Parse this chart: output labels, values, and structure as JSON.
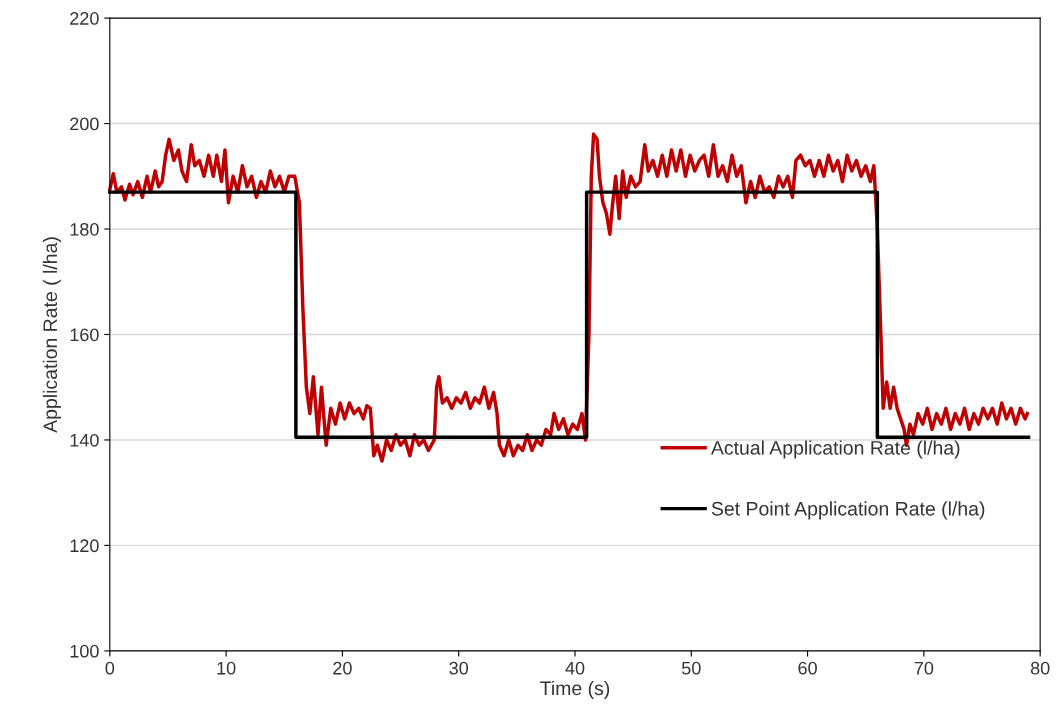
{
  "chart_data": {
    "type": "line",
    "xlabel": "Time (s)",
    "ylabel": "Application Rate ( l/ha)",
    "xlim": [
      0,
      80
    ],
    "xticks": [
      0,
      10,
      20,
      30,
      40,
      50,
      60,
      70,
      80
    ],
    "ylim": [
      100,
      220
    ],
    "yticks": [
      100,
      120,
      140,
      160,
      180,
      200,
      220
    ],
    "grid": "y",
    "legend": "lower right",
    "line_style": "solid",
    "marker": "none",
    "series": [
      {
        "name": "Actual Application Rate (l/ha)",
        "color": "#c00000",
        "x": [
          0,
          0.3,
          0.6,
          1,
          1.3,
          1.7,
          2,
          2.4,
          2.8,
          3.2,
          3.5,
          3.9,
          4.2,
          4.5,
          4.8,
          5.1,
          5.5,
          5.9,
          6.2,
          6.6,
          7,
          7.3,
          7.7,
          8.1,
          8.5,
          8.9,
          9.2,
          9.6,
          9.9,
          10.2,
          10.6,
          11,
          11.4,
          11.8,
          12.2,
          12.6,
          13,
          13.4,
          13.8,
          14.2,
          14.6,
          15,
          15.4,
          15.9,
          16.3,
          16.6,
          16.9,
          17.2,
          17.5,
          17.9,
          18.2,
          18.6,
          19,
          19.4,
          19.8,
          20.2,
          20.6,
          21,
          21.4,
          21.8,
          22.1,
          22.4,
          22.7,
          23,
          23.4,
          23.8,
          24.2,
          24.6,
          25,
          25.4,
          25.8,
          26.2,
          26.6,
          27,
          27.4,
          27.9,
          28.1,
          28.3,
          28.6,
          29,
          29.4,
          29.8,
          30.2,
          30.6,
          31,
          31.4,
          31.8,
          32.2,
          32.6,
          33,
          33.3,
          33.5,
          33.9,
          34.3,
          34.7,
          35.1,
          35.5,
          35.9,
          36.3,
          36.7,
          37.1,
          37.5,
          37.9,
          38.2,
          38.6,
          39,
          39.4,
          39.8,
          40.2,
          40.6,
          40.9,
          41.2,
          41.4,
          41.6,
          41.9,
          42.1,
          42.4,
          42.7,
          43,
          43.2,
          43.5,
          43.8,
          44.1,
          44.4,
          44.8,
          45.2,
          45.6,
          46,
          46.3,
          46.7,
          47.1,
          47.5,
          47.9,
          48.3,
          48.7,
          49.1,
          49.5,
          49.9,
          50.3,
          50.7,
          51.1,
          51.5,
          51.9,
          52.3,
          52.7,
          53.1,
          53.5,
          53.9,
          54.3,
          54.7,
          55.1,
          55.5,
          55.9,
          56.3,
          56.7,
          57.1,
          57.5,
          57.9,
          58.3,
          58.7,
          59,
          59.4,
          59.8,
          60.2,
          60.6,
          61,
          61.4,
          61.8,
          62.2,
          62.6,
          63,
          63.4,
          63.8,
          64.2,
          64.6,
          65,
          65.4,
          65.7,
          66,
          66.3,
          66.5,
          66.8,
          67.1,
          67.4,
          67.7,
          68,
          68.3,
          68.5,
          68.8,
          69.1,
          69.5,
          69.9,
          70.3,
          70.7,
          71.1,
          71.5,
          71.9,
          72.3,
          72.7,
          73.1,
          73.5,
          73.9,
          74.3,
          74.7,
          75.1,
          75.5,
          75.9,
          76.3,
          76.7,
          77.1,
          77.5,
          77.9,
          78.3,
          78.7,
          78.9
        ],
        "values": [
          187.5,
          190.5,
          187,
          188,
          185.5,
          188.5,
          186.5,
          189,
          186,
          190,
          187,
          191,
          188,
          189,
          194,
          197,
          193,
          195,
          191,
          189,
          196,
          192,
          193,
          190,
          194,
          190,
          194,
          189,
          195,
          185,
          190,
          187,
          192,
          188,
          190,
          186,
          189,
          187,
          191,
          188,
          190,
          187,
          190,
          190,
          185,
          165,
          150,
          145,
          152,
          141,
          150,
          139,
          146,
          143,
          147,
          144,
          147,
          145,
          146,
          144,
          146.5,
          146,
          137,
          139,
          136,
          140,
          138,
          141,
          139,
          140,
          137,
          141,
          139,
          140,
          138,
          140,
          150,
          152,
          147,
          148,
          146,
          148,
          147,
          149,
          146,
          148,
          147,
          150,
          146,
          149,
          145,
          139,
          137,
          140,
          137,
          139,
          138,
          141,
          138,
          140,
          139,
          142,
          141,
          145,
          142,
          144,
          141,
          143,
          142,
          145,
          140,
          160,
          190,
          198,
          197,
          190,
          185,
          183,
          179,
          184,
          190,
          182,
          191,
          186,
          190,
          188,
          189,
          196,
          191,
          193,
          190,
          194,
          190,
          195,
          191,
          195,
          190,
          194,
          191,
          193,
          194,
          190,
          196,
          190,
          192,
          189,
          194,
          190,
          192,
          185,
          189,
          186,
          190,
          187,
          188,
          186,
          190,
          188,
          190,
          186,
          193,
          194,
          192,
          193,
          190,
          193,
          190,
          194,
          191,
          193,
          189,
          194,
          191,
          193,
          190,
          192,
          189,
          192,
          180,
          160,
          146,
          151,
          146,
          150,
          146,
          144,
          142,
          139,
          143,
          141,
          145,
          143,
          146,
          142,
          145,
          143,
          146,
          142,
          145,
          143,
          146,
          142,
          145,
          143,
          146,
          144,
          146,
          143,
          147,
          144,
          146,
          143,
          146,
          144,
          145
        ]
      },
      {
        "name": "Set Point Application Rate (l/ha)",
        "color": "#000000",
        "type": "step",
        "x": [
          0,
          16,
          41,
          66,
          79
        ],
        "values": [
          187,
          140.5,
          187,
          140.5,
          140.5
        ]
      }
    ]
  }
}
